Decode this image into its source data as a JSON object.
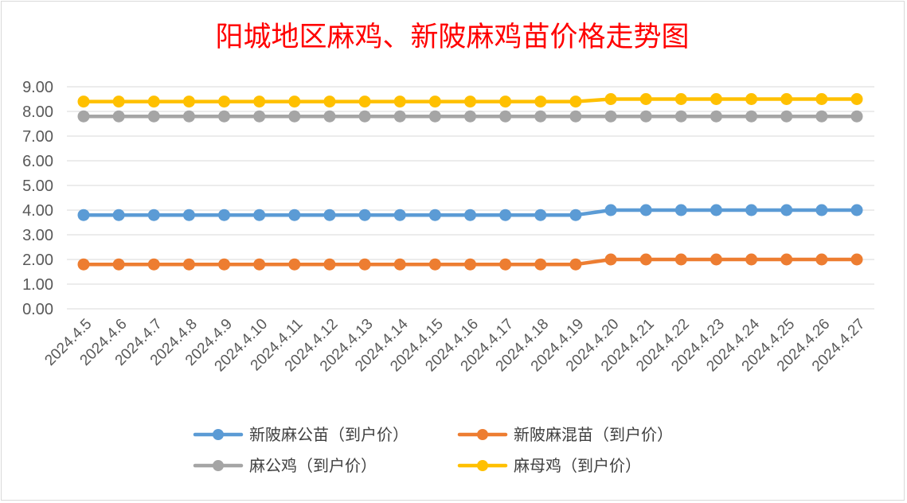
{
  "chart_data": {
    "type": "line",
    "title": "阳城地区麻鸡、新陂麻鸡苗价格走势图",
    "xlabel": "",
    "ylabel": "",
    "ylim": [
      0,
      9
    ],
    "y_ticks": [
      "0.00",
      "1.00",
      "2.00",
      "3.00",
      "4.00",
      "5.00",
      "6.00",
      "7.00",
      "8.00",
      "9.00"
    ],
    "grid": true,
    "legend_position": "bottom",
    "categories": [
      "2024.4.5",
      "2024.4.6",
      "2024.4.7",
      "2024.4.8",
      "2024.4.9",
      "2024.4.10",
      "2024.4.11",
      "2024.4.12",
      "2024.4.13",
      "2024.4.14",
      "2024.4.15",
      "2024.4.16",
      "2024.4.17",
      "2024.4.18",
      "2024.4.19",
      "2024.4.20",
      "2024.4.21",
      "2024.4.22",
      "2024.4.23",
      "2024.4.24",
      "2024.4.25",
      "2024.4.26",
      "2024.4.27"
    ],
    "series": [
      {
        "name": "新陂麻公苗（到户价）",
        "color": "#5b9bd5",
        "values": [
          3.8,
          3.8,
          3.8,
          3.8,
          3.8,
          3.8,
          3.8,
          3.8,
          3.8,
          3.8,
          3.8,
          3.8,
          3.8,
          3.8,
          3.8,
          4.0,
          4.0,
          4.0,
          4.0,
          4.0,
          4.0,
          4.0,
          4.0
        ]
      },
      {
        "name": "新陂麻混苗（到户价）",
        "color": "#ed7d31",
        "values": [
          1.8,
          1.8,
          1.8,
          1.8,
          1.8,
          1.8,
          1.8,
          1.8,
          1.8,
          1.8,
          1.8,
          1.8,
          1.8,
          1.8,
          1.8,
          2.0,
          2.0,
          2.0,
          2.0,
          2.0,
          2.0,
          2.0,
          2.0
        ]
      },
      {
        "name": "麻公鸡（到户价）",
        "color": "#a5a5a5",
        "values": [
          7.8,
          7.8,
          7.8,
          7.8,
          7.8,
          7.8,
          7.8,
          7.8,
          7.8,
          7.8,
          7.8,
          7.8,
          7.8,
          7.8,
          7.8,
          7.8,
          7.8,
          7.8,
          7.8,
          7.8,
          7.8,
          7.8,
          7.8
        ]
      },
      {
        "name": "麻母鸡（到户价）",
        "color": "#ffc000",
        "values": [
          8.4,
          8.4,
          8.4,
          8.4,
          8.4,
          8.4,
          8.4,
          8.4,
          8.4,
          8.4,
          8.4,
          8.4,
          8.4,
          8.4,
          8.4,
          8.5,
          8.5,
          8.5,
          8.5,
          8.5,
          8.5,
          8.5,
          8.5
        ]
      }
    ],
    "colors": {
      "title": "#ff0000",
      "grid": "#d9d9d9",
      "tick_text": "#595959",
      "legend_text": "#404040"
    }
  }
}
